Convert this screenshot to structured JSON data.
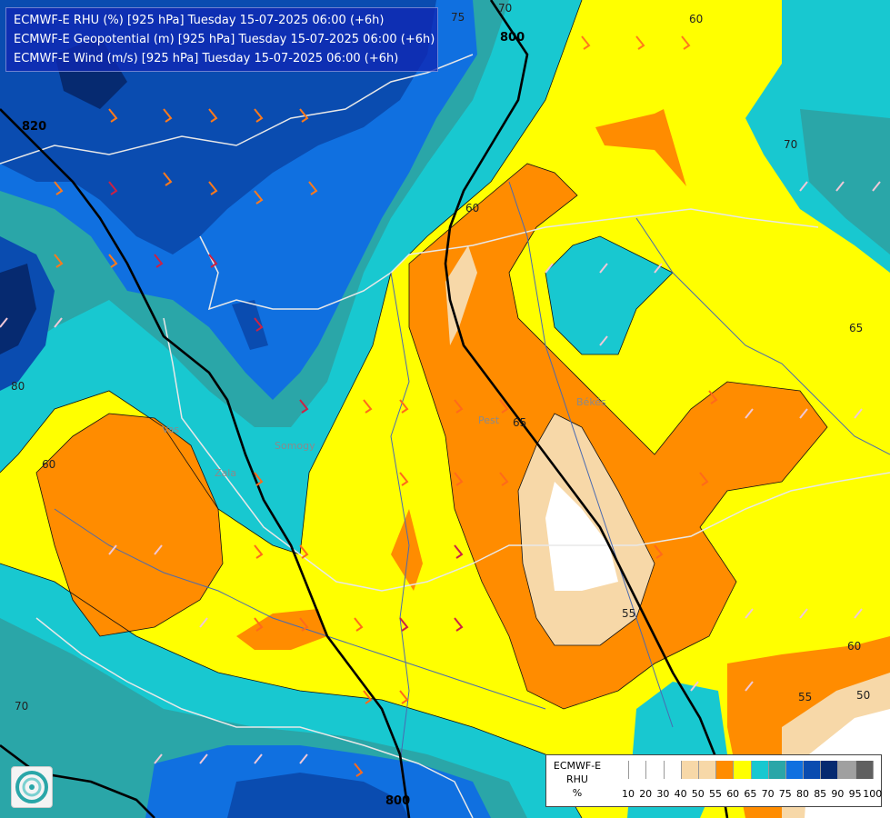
{
  "header": {
    "lines": [
      "ECMWF-E RHU (%) [925 hPa] Tuesday 15-07-2025 06:00 (+6h)",
      "ECMWF-E Geopotential (m) [925 hPa] Tuesday 15-07-2025 06:00 (+6h)",
      "ECMWF-E Wind (m/s) [925 hPa] Tuesday 15-07-2025 06:00 (+6h)"
    ]
  },
  "legend": {
    "title_lines": [
      "ECMWF-E",
      "RHU",
      "%"
    ],
    "levels": [
      "10",
      "20",
      "30",
      "40",
      "50",
      "55",
      "60",
      "65",
      "70",
      "75",
      "80",
      "85",
      "90",
      "95",
      "100"
    ],
    "colors": [
      "#ffffff",
      "#ffffff",
      "#ffffff",
      "#ffffff",
      "#f7d8a8",
      "#f7d8a8",
      "#ff8c00",
      "#ffff00",
      "#18c8d0",
      "#2aa6a8",
      "#1070e0",
      "#0a4cb0",
      "#062a70",
      "#a0a0a0",
      "#606060"
    ]
  },
  "contour_labels": [
    "75",
    "70",
    "60",
    "70",
    "65",
    "60",
    "80",
    "60",
    "70",
    "65",
    "55",
    "60",
    "55",
    "50"
  ],
  "geopotential_labels": [
    "800",
    "820",
    "800"
  ],
  "place_labels": [
    "Vas",
    "Békés",
    "Pest",
    "Zala",
    "Somogy"
  ],
  "colors": {
    "rhu_60": "#ff8c00",
    "rhu_65": "#ffff00",
    "rhu_70": "#18c8d0",
    "rhu_75": "#2aa6a8",
    "rhu_80": "#1070e0",
    "rhu_85": "#0a4cb0",
    "rhu_90": "#062a70",
    "rhu_55": "#f7d8a8",
    "rhu_low": "#ffffff",
    "border": "#e0e0e0",
    "river": "#4a6ab0"
  },
  "logo": {
    "icon": "ecmwf-logo-icon"
  }
}
